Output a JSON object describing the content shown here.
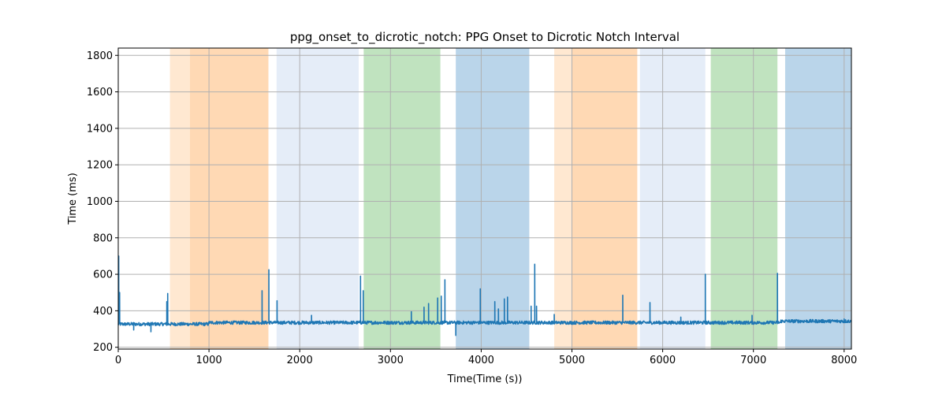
{
  "chart_data": {
    "type": "line",
    "title": "ppg_onset_to_dicrotic_notch: PPG Onset to Dicrotic Notch Interval",
    "xlabel": "Time(Time (s))",
    "ylabel": "Time (ms)",
    "xlim": [
      0,
      8080
    ],
    "ylim": [
      190,
      1840
    ],
    "xticks": [
      0,
      1000,
      2000,
      3000,
      4000,
      5000,
      6000,
      7000,
      8000
    ],
    "yticks": [
      200,
      400,
      600,
      800,
      1000,
      1200,
      1400,
      1600,
      1800
    ],
    "grid": true,
    "baseline": 335,
    "shaded_regions": [
      {
        "x0": 570,
        "x1": 790,
        "color": "#ffe8d1"
      },
      {
        "x0": 790,
        "x1": 1655,
        "color": "#ffd9b4"
      },
      {
        "x0": 1745,
        "x1": 2650,
        "color": "#e5edf8"
      },
      {
        "x0": 2705,
        "x1": 3550,
        "color": "#c0e3bf"
      },
      {
        "x0": 3720,
        "x1": 4530,
        "color": "#bad5ea"
      },
      {
        "x0": 4805,
        "x1": 4995,
        "color": "#ffe8d1"
      },
      {
        "x0": 4995,
        "x1": 5720,
        "color": "#ffd9b4"
      },
      {
        "x0": 5750,
        "x1": 6470,
        "color": "#e5edf8"
      },
      {
        "x0": 6530,
        "x1": 7265,
        "color": "#c0e3bf"
      },
      {
        "x0": 7350,
        "x1": 8080,
        "color": "#bad5ea"
      }
    ],
    "series": [
      {
        "color": "#1f77b4",
        "spikes": [
          {
            "x": 5,
            "y": 700
          },
          {
            "x": 15,
            "y": 500
          },
          {
            "x": 170,
            "y": 295
          },
          {
            "x": 360,
            "y": 285
          },
          {
            "x": 535,
            "y": 450
          },
          {
            "x": 545,
            "y": 495
          },
          {
            "x": 1585,
            "y": 510
          },
          {
            "x": 1660,
            "y": 625
          },
          {
            "x": 1750,
            "y": 455
          },
          {
            "x": 2130,
            "y": 375
          },
          {
            "x": 2670,
            "y": 590
          },
          {
            "x": 2700,
            "y": 510
          },
          {
            "x": 3230,
            "y": 395
          },
          {
            "x": 3370,
            "y": 420
          },
          {
            "x": 3420,
            "y": 440
          },
          {
            "x": 3520,
            "y": 470
          },
          {
            "x": 3560,
            "y": 480
          },
          {
            "x": 3600,
            "y": 570
          },
          {
            "x": 3720,
            "y": 265
          },
          {
            "x": 3990,
            "y": 520
          },
          {
            "x": 4150,
            "y": 450
          },
          {
            "x": 4190,
            "y": 410
          },
          {
            "x": 4255,
            "y": 465
          },
          {
            "x": 4290,
            "y": 475
          },
          {
            "x": 4550,
            "y": 425
          },
          {
            "x": 4590,
            "y": 655
          },
          {
            "x": 4610,
            "y": 425
          },
          {
            "x": 4805,
            "y": 380
          },
          {
            "x": 5560,
            "y": 485
          },
          {
            "x": 5860,
            "y": 445
          },
          {
            "x": 6200,
            "y": 365
          },
          {
            "x": 6470,
            "y": 600
          },
          {
            "x": 6985,
            "y": 375
          },
          {
            "x": 7265,
            "y": 605
          },
          {
            "x": 8000,
            "y": 355
          }
        ]
      }
    ]
  }
}
